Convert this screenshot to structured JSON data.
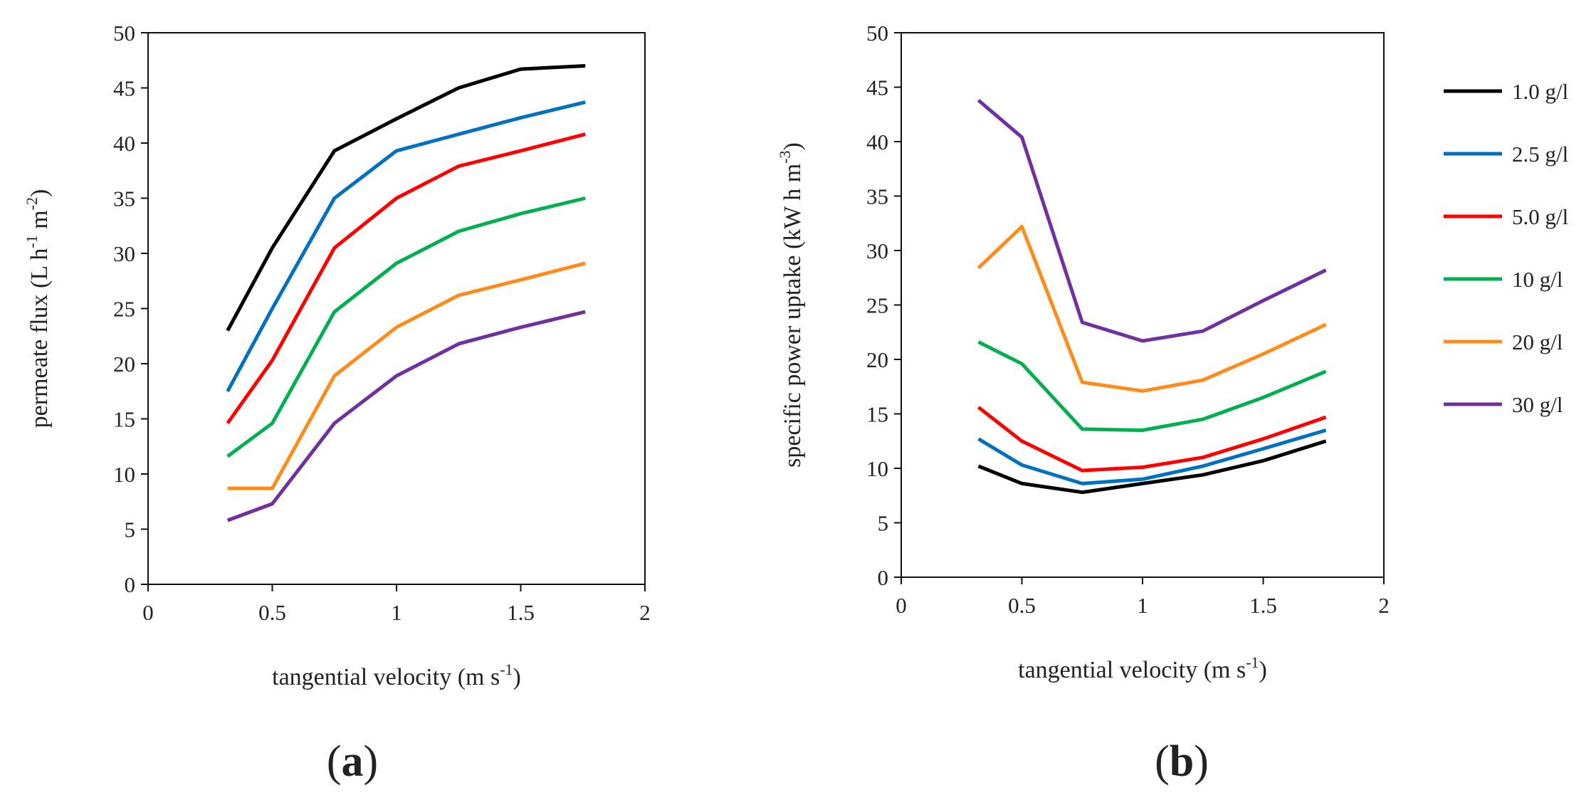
{
  "chart_data": [
    {
      "type": "line",
      "panel_label": "(a)",
      "title": "",
      "xlabel": "tangential velocity (m s-1)",
      "xlabel_parts": {
        "main": "tangential velocity (m s",
        "sup": "-1",
        "close": ")"
      },
      "ylabel": "permeate flux (L h-1 m-2)",
      "ylabel_parts": {
        "main": "permeate flux (L h",
        "sup1": "-1",
        "mid": " m",
        "sup2": "-2",
        "close": ")"
      },
      "xlim": [
        0,
        2
      ],
      "ylim": [
        0,
        50
      ],
      "xticks": [
        "0",
        "0.5",
        "1",
        "1.5",
        "2"
      ],
      "yticks": [
        "0",
        "5",
        "10",
        "15",
        "20",
        "25",
        "30",
        "35",
        "40",
        "45",
        "50"
      ],
      "grid": false,
      "x": [
        0.32,
        0.5,
        0.75,
        1.0,
        1.25,
        1.5,
        1.76
      ],
      "series": [
        {
          "name": "1.0 g/l",
          "color": "#000000",
          "values": [
            23.0,
            30.5,
            39.3,
            42.2,
            45.0,
            46.7,
            47.0
          ]
        },
        {
          "name": "2.5 g/l",
          "color": "#0070c0",
          "values": [
            17.5,
            25.0,
            35.0,
            39.3,
            40.8,
            42.3,
            43.7
          ]
        },
        {
          "name": "5.0 g/l",
          "color": "#ff0000",
          "values": [
            14.6,
            20.3,
            30.5,
            35.0,
            37.9,
            39.3,
            40.8
          ]
        },
        {
          "name": "10 g/l",
          "color": "#00b050",
          "values": [
            11.6,
            14.6,
            24.7,
            29.1,
            32.0,
            33.6,
            35.0
          ]
        },
        {
          "name": "20 g/l",
          "color": "#ff8c1a",
          "values": [
            8.7,
            8.7,
            18.9,
            23.3,
            26.2,
            27.6,
            29.1
          ]
        },
        {
          "name": "30 g/l",
          "color": "#7030a0",
          "values": [
            5.8,
            7.3,
            14.6,
            18.9,
            21.8,
            23.3,
            24.7
          ]
        }
      ]
    },
    {
      "type": "line",
      "panel_label": "(b)",
      "title": "",
      "xlabel": "tangential velocity (m s-1)",
      "xlabel_parts": {
        "main": "tangential velocity (m s",
        "sup": "-1",
        "close": ")"
      },
      "ylabel": "specific power uptake (kW h m-3)",
      "ylabel_parts": {
        "main": "specific power uptake (kW h m",
        "sup1": "-3",
        "mid": "",
        "sup2": "",
        "close": ")"
      },
      "xlim": [
        0,
        2
      ],
      "ylim": [
        0,
        50
      ],
      "xticks": [
        "0",
        "0.5",
        "1",
        "1.5",
        "2"
      ],
      "yticks": [
        "0",
        "5",
        "10",
        "15",
        "20",
        "25",
        "30",
        "35",
        "40",
        "45",
        "50"
      ],
      "grid": false,
      "x": [
        0.32,
        0.5,
        0.75,
        1.0,
        1.25,
        1.5,
        1.76
      ],
      "series": [
        {
          "name": "1.0 g/l",
          "color": "#000000",
          "values": [
            10.2,
            8.6,
            7.8,
            8.6,
            9.4,
            10.7,
            12.5
          ]
        },
        {
          "name": "2.5 g/l",
          "color": "#0070c0",
          "values": [
            12.7,
            10.3,
            8.6,
            9.0,
            10.2,
            11.8,
            13.5
          ]
        },
        {
          "name": "5.0 g/l",
          "color": "#ff0000",
          "values": [
            15.6,
            12.5,
            9.8,
            10.1,
            11.0,
            12.7,
            14.7
          ]
        },
        {
          "name": "10 g/l",
          "color": "#00b050",
          "values": [
            21.6,
            19.6,
            13.6,
            13.5,
            14.5,
            16.5,
            18.9
          ]
        },
        {
          "name": "20 g/l",
          "color": "#ff8c1a",
          "values": [
            28.4,
            32.2,
            17.9,
            17.1,
            18.1,
            20.5,
            23.2
          ]
        },
        {
          "name": "30 g/l",
          "color": "#7030a0",
          "values": [
            43.8,
            40.4,
            23.4,
            21.7,
            22.6,
            25.4,
            28.2
          ]
        }
      ]
    }
  ],
  "legend": {
    "position": "right",
    "items": [
      {
        "label": "1.0 g/l",
        "color": "#000000"
      },
      {
        "label": "2.5 g/l",
        "color": "#0070c0"
      },
      {
        "label": "5.0 g/l",
        "color": "#ff0000"
      },
      {
        "label": "10 g/l",
        "color": "#00b050"
      },
      {
        "label": "20 g/l",
        "color": "#ff8c1a"
      },
      {
        "label": "30 g/l",
        "color": "#7030a0"
      }
    ]
  }
}
